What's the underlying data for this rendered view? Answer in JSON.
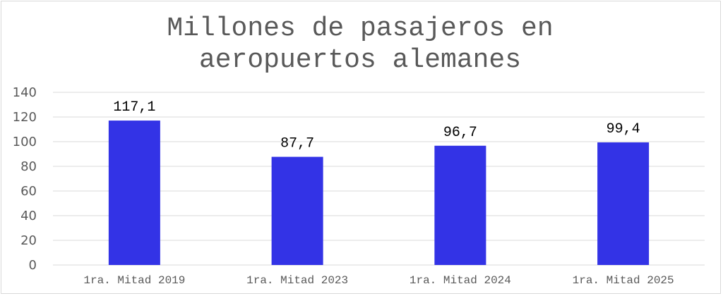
{
  "chart_data": {
    "type": "bar",
    "title_lines": [
      "Millones de pasajeros en",
      "aeropuertos alemanes"
    ],
    "categories": [
      "1ra. Mitad 2019",
      "1ra. Mitad 2023",
      "1ra. Mitad 2024",
      "1ra. Mitad 2025"
    ],
    "values": [
      117.1,
      87.7,
      96.7,
      99.4
    ],
    "data_labels": [
      "117,1",
      "87,7",
      "96,7",
      "99,4"
    ],
    "y_ticks": [
      "0",
      "20",
      "40",
      "60",
      "80",
      "100",
      "120",
      "140"
    ],
    "ylim": [
      0,
      140
    ],
    "grid": true,
    "legend": "none",
    "bar_color": "#3333e6",
    "grid_color": "#d9d9d9"
  }
}
